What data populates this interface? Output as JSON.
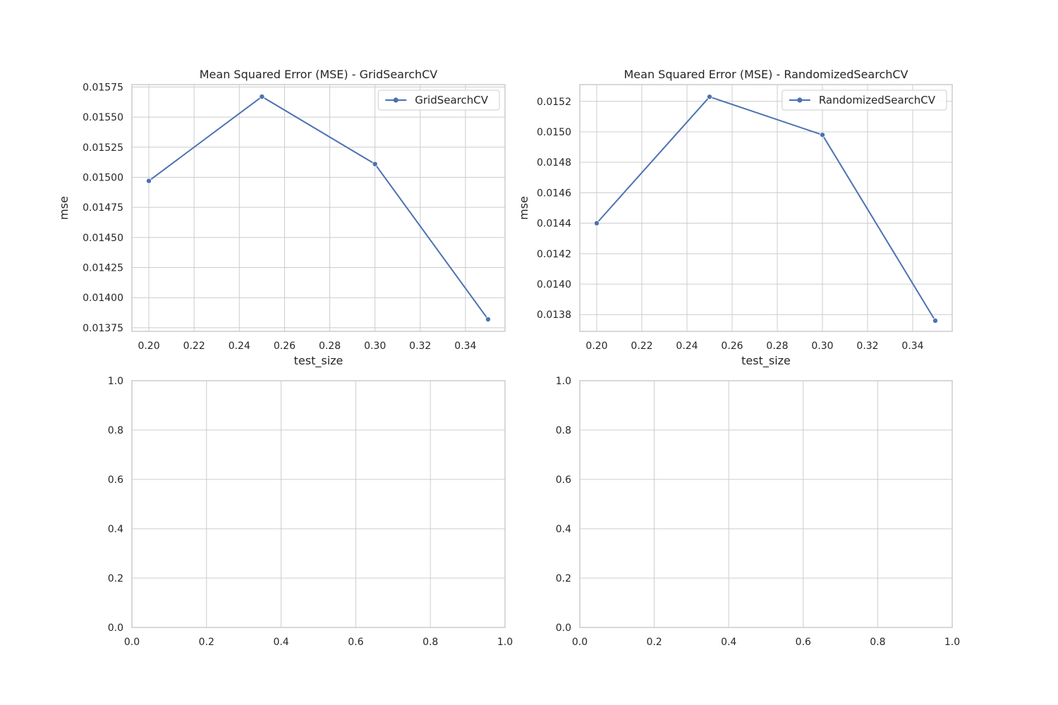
{
  "chart_data": [
    {
      "type": "line",
      "title": "Mean Squared Error (MSE) - GridSearchCV",
      "xlabel": "test_size",
      "ylabel": "mse",
      "x": [
        0.2,
        0.25,
        0.3,
        0.35
      ],
      "series": [
        {
          "name": "GridSearchCV",
          "values": [
            0.01497,
            0.01567,
            0.01511,
            0.01382
          ]
        }
      ],
      "xlim": [
        0.1925,
        0.3575
      ],
      "ylim": [
        0.01372,
        0.01577
      ],
      "xticks": [
        "0.20",
        "0.22",
        "0.24",
        "0.26",
        "0.28",
        "0.30",
        "0.32",
        "0.34"
      ],
      "yticks": [
        "0.01375",
        "0.01400",
        "0.01425",
        "0.01450",
        "0.01475",
        "0.01500",
        "0.01525",
        "0.01550",
        "0.01575"
      ],
      "grid": true,
      "legend": "upper-right",
      "color": "#4c72b0"
    },
    {
      "type": "line",
      "title": "Mean Squared Error (MSE) - RandomizedSearchCV",
      "xlabel": "test_size",
      "ylabel": "mse",
      "x": [
        0.2,
        0.25,
        0.3,
        0.35
      ],
      "series": [
        {
          "name": "RandomizedSearchCV",
          "values": [
            0.0144,
            0.01523,
            0.01498,
            0.01376
          ]
        }
      ],
      "xlim": [
        0.1925,
        0.3575
      ],
      "ylim": [
        0.01369,
        0.01531
      ],
      "xticks": [
        "0.20",
        "0.22",
        "0.24",
        "0.26",
        "0.28",
        "0.30",
        "0.32",
        "0.34"
      ],
      "yticks": [
        "0.0138",
        "0.0140",
        "0.0142",
        "0.0144",
        "0.0146",
        "0.0148",
        "0.0150",
        "0.0152"
      ],
      "grid": true,
      "legend": "upper-right",
      "color": "#4c72b0"
    },
    {
      "type": "line",
      "title": "",
      "xlabel": "",
      "ylabel": "",
      "series": [],
      "xlim": [
        0,
        1
      ],
      "ylim": [
        0,
        1
      ],
      "xticks": [
        "0.0",
        "0.2",
        "0.4",
        "0.6",
        "0.8",
        "1.0"
      ],
      "yticks": [
        "0.0",
        "0.2",
        "0.4",
        "0.6",
        "0.8",
        "1.0"
      ],
      "grid": true
    },
    {
      "type": "line",
      "title": "",
      "xlabel": "",
      "ylabel": "",
      "series": [],
      "xlim": [
        0,
        1
      ],
      "ylim": [
        0,
        1
      ],
      "xticks": [
        "0.0",
        "0.2",
        "0.4",
        "0.6",
        "0.8",
        "1.0"
      ],
      "yticks": [
        "0.0",
        "0.2",
        "0.4",
        "0.6",
        "0.8",
        "1.0"
      ],
      "grid": true
    }
  ]
}
